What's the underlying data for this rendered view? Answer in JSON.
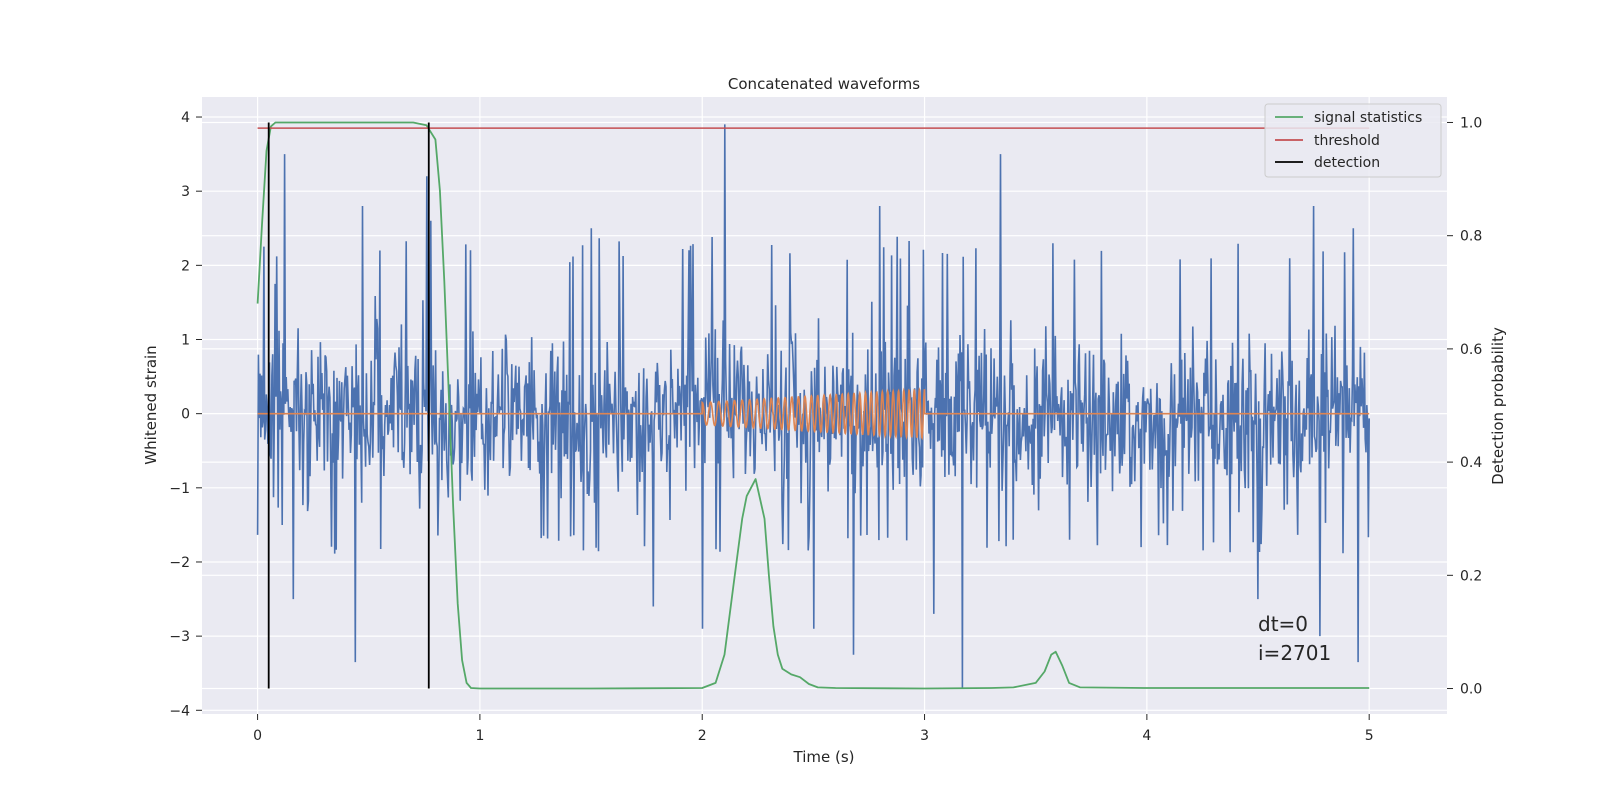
{
  "chart_data": {
    "type": "line",
    "title": "Concatenated waveforms",
    "xlabel": "Time (s)",
    "ylabel_left": "Whitened strain",
    "ylabel_right": "Detection probability",
    "xlim": [
      -0.25,
      5.35
    ],
    "ylim_left": [
      -4.05,
      4.27
    ],
    "ylim_right": [
      -0.045,
      1.045
    ],
    "x_ticks": [
      0,
      1,
      2,
      3,
      4,
      5
    ],
    "x_tick_labels": [
      "0",
      "1",
      "2",
      "3",
      "4",
      "5"
    ],
    "y_ticks_left": [
      4,
      3,
      2,
      1,
      0,
      -1,
      -2,
      -3,
      -4
    ],
    "y_tick_labels_left": [
      "4",
      "3",
      "2",
      "1",
      "0",
      "−1",
      "−2",
      "−3",
      "−4"
    ],
    "y_ticks_right": [
      1.0,
      0.8,
      0.6,
      0.4,
      0.2,
      0.0
    ],
    "y_tick_labels_right": [
      "1.0",
      "0.8",
      "0.6",
      "0.4",
      "0.2",
      "0.0"
    ],
    "grid": true,
    "legend_position": "top-right",
    "annotation_lines": [
      "dt=0",
      "i=2701"
    ],
    "colors": {
      "background": "#eaeaf2",
      "grid": "#ffffff",
      "strain": "#4c72b0",
      "injected_signal": "#dd8452",
      "signal_statistics": "#55a868",
      "threshold": "#c44e52",
      "detection": "#000000"
    },
    "series": [
      {
        "name": "whitened strain (noise)",
        "axis": "left",
        "t_range": [
          0,
          5
        ],
        "typical_range": [
          -1.9,
          2.4
        ],
        "outliers": [
          {
            "t": 0.08,
            "y": 1.75
          },
          {
            "t": 0.12,
            "y": 3.5
          },
          {
            "t": 0.16,
            "y": -2.5
          },
          {
            "t": 0.44,
            "y": -3.35
          },
          {
            "t": 0.47,
            "y": 2.8
          },
          {
            "t": 0.55,
            "y": 2.2
          },
          {
            "t": 0.76,
            "y": 3.2
          },
          {
            "t": 0.78,
            "y": 2.6
          },
          {
            "t": 1.5,
            "y": 2.5
          },
          {
            "t": 1.78,
            "y": -2.6
          },
          {
            "t": 2.0,
            "y": -2.9
          },
          {
            "t": 2.1,
            "y": 3.9
          },
          {
            "t": 2.5,
            "y": -2.9
          },
          {
            "t": 2.68,
            "y": -3.25
          },
          {
            "t": 2.8,
            "y": 2.8
          },
          {
            "t": 3.04,
            "y": -2.7
          },
          {
            "t": 3.17,
            "y": -3.7
          },
          {
            "t": 3.34,
            "y": 3.5
          },
          {
            "t": 4.5,
            "y": -2.5
          },
          {
            "t": 4.75,
            "y": 2.8
          },
          {
            "t": 4.78,
            "y": -3.0
          },
          {
            "t": 4.93,
            "y": 2.5
          },
          {
            "t": 4.95,
            "y": -3.35
          }
        ]
      },
      {
        "name": "injected waveform",
        "axis": "left",
        "t_range": [
          0,
          5
        ],
        "chirp_start": 2.0,
        "chirp_end": 3.0,
        "amplitude_start": 0.15,
        "amplitude_end": 0.33,
        "cycles": 35
      },
      {
        "name": "signal statistics",
        "axis": "right",
        "x": [
          0,
          0.02,
          0.04,
          0.06,
          0.08,
          0.1,
          0.3,
          0.7,
          0.76,
          0.8,
          0.82,
          0.84,
          0.86,
          0.88,
          0.9,
          0.92,
          0.94,
          0.96,
          1.0,
          1.5,
          2.0,
          2.06,
          2.1,
          2.14,
          2.18,
          2.2,
          2.24,
          2.28,
          2.3,
          2.32,
          2.34,
          2.36,
          2.4,
          2.44,
          2.48,
          2.52,
          2.6,
          3.0,
          3.3,
          3.4,
          3.5,
          3.54,
          3.57,
          3.59,
          3.62,
          3.65,
          3.7,
          4.0,
          4.5,
          5.0
        ],
        "y": [
          0.68,
          0.82,
          0.95,
          0.993,
          1.0,
          1.0,
          1.0,
          1.0,
          0.995,
          0.97,
          0.88,
          0.72,
          0.52,
          0.32,
          0.15,
          0.05,
          0.01,
          0.001,
          0.0,
          0.0,
          0.001,
          0.01,
          0.06,
          0.18,
          0.3,
          0.34,
          0.37,
          0.3,
          0.2,
          0.11,
          0.06,
          0.035,
          0.025,
          0.02,
          0.008,
          0.002,
          0.001,
          0.0,
          0.001,
          0.002,
          0.01,
          0.03,
          0.06,
          0.065,
          0.04,
          0.01,
          0.002,
          0.001,
          0.001,
          0.001
        ]
      },
      {
        "name": "threshold",
        "axis": "right",
        "x": [
          0,
          5
        ],
        "y": [
          0.99,
          0.99
        ]
      },
      {
        "name": "detection",
        "axis": "right",
        "type": "vertical_lines",
        "x": [
          0.05,
          0.77
        ],
        "y_range": [
          0.0,
          1.0
        ]
      }
    ],
    "legend": [
      "signal statistics",
      "threshold",
      "detection"
    ]
  }
}
